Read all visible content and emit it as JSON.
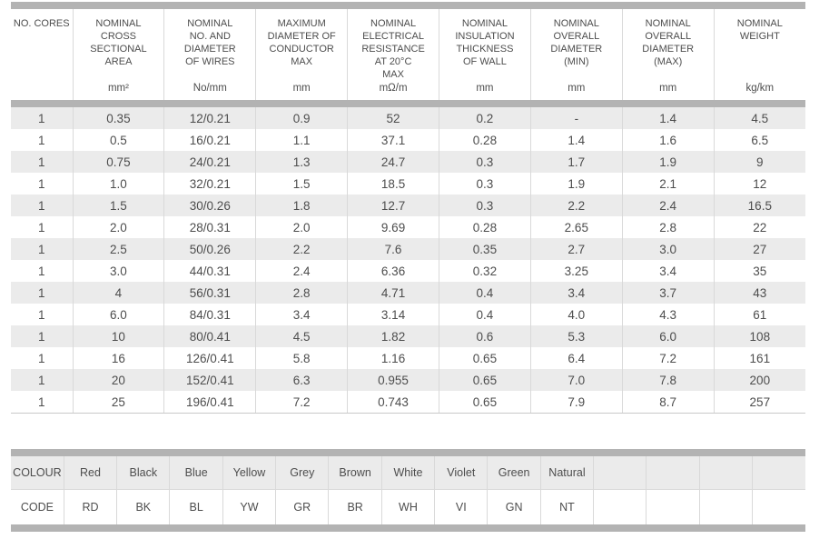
{
  "spec_table": {
    "columns": [
      {
        "title": "NO. CORES",
        "unit": ""
      },
      {
        "title": "NOMINAL\nCROSS\nSECTIONAL\nAREA",
        "unit": "mm²"
      },
      {
        "title": "NOMINAL\nNO. AND\nDIAMETER\nOF WIRES",
        "unit": "No/mm"
      },
      {
        "title": "MAXIMUM\nDIAMETER OF\nCONDUCTOR\nMAX",
        "unit": "mm"
      },
      {
        "title": "NOMINAL\nELECTRICAL\nRESISTANCE\nAT 20°C\nMAX",
        "unit": "mΩ/m"
      },
      {
        "title": "NOMINAL\nINSULATION\nTHICKNESS\nOF WALL",
        "unit": "mm"
      },
      {
        "title": "NOMINAL\nOVERALL\nDIAMETER\n(MIN)",
        "unit": "mm"
      },
      {
        "title": "NOMINAL\nOVERALL\nDIAMETER\n(MAX)",
        "unit": "mm"
      },
      {
        "title": "NOMINAL\nWEIGHT",
        "unit": "kg/km"
      }
    ],
    "rows": [
      [
        "1",
        "0.35",
        "12/0.21",
        "0.9",
        "52",
        "0.2",
        "-",
        "1.4",
        "4.5"
      ],
      [
        "1",
        "0.5",
        "16/0.21",
        "1.1",
        "37.1",
        "0.28",
        "1.4",
        "1.6",
        "6.5"
      ],
      [
        "1",
        "0.75",
        "24/0.21",
        "1.3",
        "24.7",
        "0.3",
        "1.7",
        "1.9",
        "9"
      ],
      [
        "1",
        "1.0",
        "32/0.21",
        "1.5",
        "18.5",
        "0.3",
        "1.9",
        "2.1",
        "12"
      ],
      [
        "1",
        "1.5",
        "30/0.26",
        "1.8",
        "12.7",
        "0.3",
        "2.2",
        "2.4",
        "16.5"
      ],
      [
        "1",
        "2.0",
        "28/0.31",
        "2.0",
        "9.69",
        "0.28",
        "2.65",
        "2.8",
        "22"
      ],
      [
        "1",
        "2.5",
        "50/0.26",
        "2.2",
        "7.6",
        "0.35",
        "2.7",
        "3.0",
        "27"
      ],
      [
        "1",
        "3.0",
        "44/0.31",
        "2.4",
        "6.36",
        "0.32",
        "3.25",
        "3.4",
        "35"
      ],
      [
        "1",
        "4",
        "56/0.31",
        "2.8",
        "4.71",
        "0.4",
        "3.4",
        "3.7",
        "43"
      ],
      [
        "1",
        "6.0",
        "84/0.31",
        "3.4",
        "3.14",
        "0.4",
        "4.0",
        "4.3",
        "61"
      ],
      [
        "1",
        "10",
        "80/0.41",
        "4.5",
        "1.82",
        "0.6",
        "5.3",
        "6.0",
        "108"
      ],
      [
        "1",
        "16",
        "126/0.41",
        "5.8",
        "1.16",
        "0.65",
        "6.4",
        "7.2",
        "161"
      ],
      [
        "1",
        "20",
        "152/0.41",
        "6.3",
        "0.955",
        "0.65",
        "7.0",
        "7.8",
        "200"
      ],
      [
        "1",
        "25",
        "196/0.41",
        "7.2",
        "0.743",
        "0.65",
        "7.9",
        "8.7",
        "257"
      ]
    ]
  },
  "colour_table": {
    "colour_label": "COLOUR",
    "code_label": "CODE",
    "colours": [
      "Red",
      "Black",
      "Blue",
      "Yellow",
      "Grey",
      "Brown",
      "White",
      "Violet",
      "Green",
      "Natural"
    ],
    "codes": [
      "RD",
      "BK",
      "BL",
      "YW",
      "GR",
      "BR",
      "WH",
      "VI",
      "GN",
      "NT"
    ],
    "empty_columns": 4
  },
  "colors": {
    "bar": "#b3b3b3",
    "row_stripe": "#ebebeb",
    "divider": "#d9d9d9",
    "text": "#4d4d4d"
  }
}
